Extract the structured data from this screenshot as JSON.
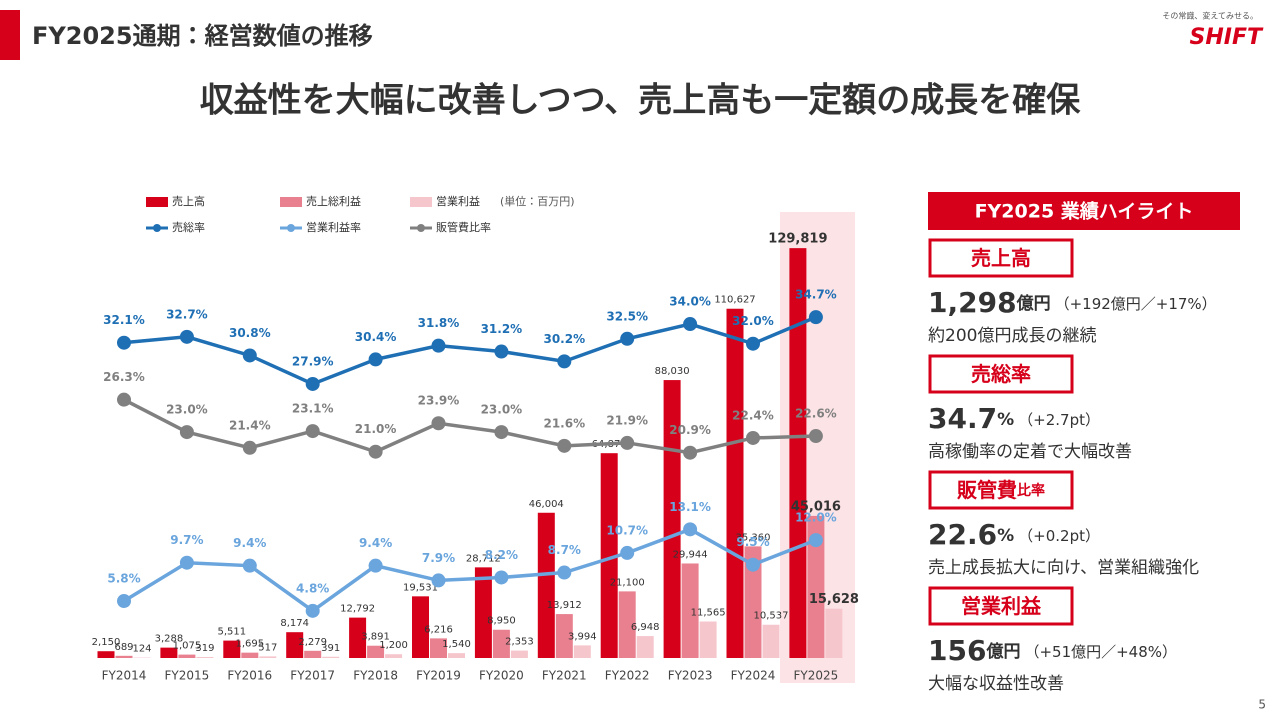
{
  "header": {
    "title": "FY2025通期：経営数値の推移",
    "tagline": "その常識、変えてみせる。",
    "logo": "SHIFT"
  },
  "headline": "収益性を大幅に改善しつつ、売上高も一定額の成長を確保",
  "chart_data": {
    "type": "bar",
    "unit_note": "(単位：百万円)",
    "categories": [
      "FY2014",
      "FY2015",
      "FY2016",
      "FY2017",
      "FY2018",
      "FY2019",
      "FY2020",
      "FY2021",
      "FY2022",
      "FY2023",
      "FY2024",
      "FY2025"
    ],
    "ylim": [
      0,
      140000
    ],
    "y2lim": [
      0,
      45
    ],
    "series": [
      {
        "name": "売上高",
        "type": "bar",
        "color": "#d7001b",
        "values": [
          2150,
          3288,
          5511,
          8174,
          12792,
          19531,
          28712,
          46004,
          64873,
          88030,
          110627,
          129819
        ],
        "value_labels": [
          "2,150",
          "3,288",
          "5,511",
          "8,174",
          "12,792",
          "19,531",
          "28,712",
          "46,004",
          "64,873",
          "88,030",
          "110,627",
          "129,819"
        ]
      },
      {
        "name": "売上総利益",
        "type": "bar",
        "color": "#e8808f",
        "values": [
          689,
          1075,
          1695,
          2279,
          3891,
          6216,
          8950,
          13912,
          21100,
          29944,
          35360,
          45016
        ],
        "value_labels": [
          "689",
          "1,075",
          "1,695",
          "2,279",
          "3,891",
          "6,216",
          "8,950",
          "13,912",
          "21,100",
          "29,944",
          "35,360",
          "45,016"
        ]
      },
      {
        "name": "営業利益",
        "type": "bar",
        "color": "#f6c6cd",
        "values": [
          124,
          319,
          517,
          391,
          1200,
          1540,
          2353,
          3994,
          6948,
          11565,
          10537,
          15628
        ],
        "value_labels": [
          "124",
          "319",
          "517",
          "391",
          "1,200",
          "1,540",
          "2,353",
          "3,994",
          "6,948",
          "11,565",
          "10,537",
          "15,628"
        ]
      },
      {
        "name": "売総率",
        "type": "line",
        "axis": "y2",
        "color": "#1f6fb4",
        "values": [
          32.1,
          32.7,
          30.8,
          27.9,
          30.4,
          31.8,
          31.2,
          30.2,
          32.5,
          34.0,
          32.0,
          34.7
        ],
        "value_labels": [
          "32.1%",
          "32.7%",
          "30.8%",
          "27.9%",
          "30.4%",
          "31.8%",
          "31.2%",
          "30.2%",
          "32.5%",
          "34.0%",
          "32.0%",
          "34.7%"
        ]
      },
      {
        "name": "営業利益率",
        "type": "line",
        "axis": "y2",
        "color": "#6aa5dd",
        "values": [
          5.8,
          9.7,
          9.4,
          4.8,
          9.4,
          7.9,
          8.2,
          8.7,
          10.7,
          13.1,
          9.5,
          12.0
        ],
        "value_labels": [
          "5.8%",
          "9.7%",
          "9.4%",
          "4.8%",
          "9.4%",
          "7.9%",
          "8.2%",
          "8.7%",
          "10.7%",
          "13.1%",
          "9.5%",
          "12.0%"
        ]
      },
      {
        "name": "販管費比率",
        "type": "line",
        "axis": "y2",
        "color": "#808080",
        "values": [
          26.3,
          23.0,
          21.4,
          23.1,
          21.0,
          23.9,
          23.0,
          21.6,
          21.9,
          20.9,
          22.4,
          22.6
        ],
        "value_labels": [
          "26.3%",
          "23.0%",
          "21.4%",
          "23.1%",
          "21.0%",
          "23.9%",
          "23.0%",
          "21.6%",
          "21.9%",
          "20.9%",
          "22.4%",
          "22.6%"
        ]
      }
    ]
  },
  "highlights": {
    "title": "FY2025 業績ハイライト",
    "items": [
      {
        "label": "売上高",
        "value": "1,298",
        "unit": "億円",
        "note": "（+192億円／+17%）",
        "description": "約200億円成長の継続"
      },
      {
        "label": "売総率",
        "value": "34.7",
        "unit": "%",
        "note": "（+2.7pt）",
        "description": "高稼働率の定着で大幅改善"
      },
      {
        "label": "販管費",
        "label_sub": "比率",
        "value": "22.6",
        "unit": "%",
        "note": "（+0.2pt）",
        "description": "売上成長拡大に向け、営業組織強化"
      },
      {
        "label": "営業利益",
        "value": "156",
        "unit": "億円",
        "note": "（+51億円／+48%）",
        "description": "大幅な収益性改善"
      }
    ]
  },
  "page_number": "5"
}
